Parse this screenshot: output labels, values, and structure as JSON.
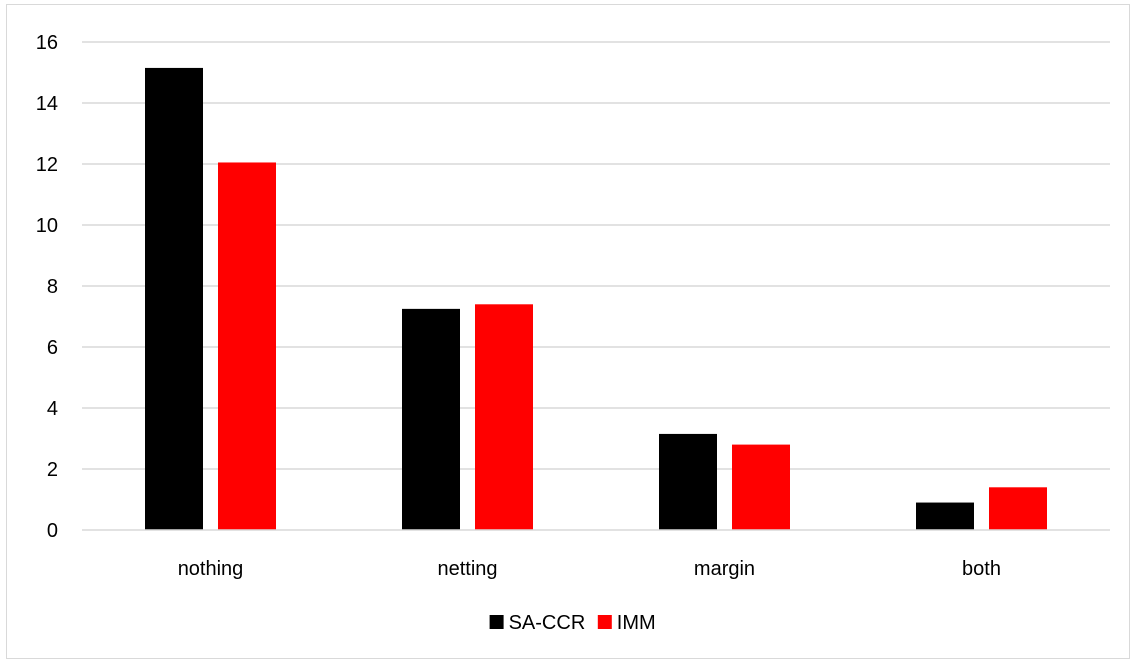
{
  "chart_data": {
    "type": "bar",
    "title": "",
    "xlabel": "",
    "ylabel": "",
    "categories": [
      "nothing",
      "netting",
      "margin",
      "both"
    ],
    "series": [
      {
        "name": "SA-CCR",
        "color": "#000000",
        "values": [
          15.15,
          7.25,
          3.15,
          0.9
        ]
      },
      {
        "name": "IMM",
        "color": "#ff0000",
        "values": [
          12.05,
          7.4,
          2.8,
          1.4
        ]
      }
    ],
    "ylim": [
      0,
      16
    ],
    "yticks": [
      "0",
      "2",
      "4",
      "6",
      "8",
      "10",
      "12",
      "14",
      "16"
    ],
    "grid": true,
    "legend_position": "bottom-center"
  }
}
